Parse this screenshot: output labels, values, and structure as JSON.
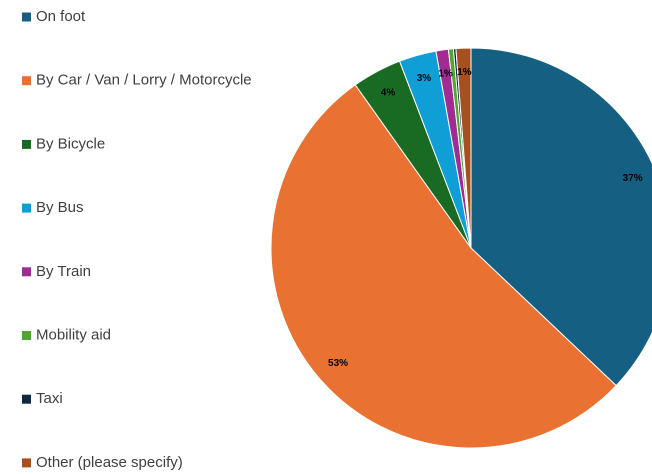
{
  "chart_data": {
    "type": "pie",
    "categories": [
      "On foot",
      "By Car / Van / Lorry / Motorcycle",
      "By Bicycle",
      "By Bus",
      "By Train",
      "Mobility aid",
      "Taxi",
      "Other (please specify)"
    ],
    "values": [
      37,
      53,
      4,
      3,
      1,
      0.4,
      0.2,
      1.2
    ],
    "value_labels": [
      "37%",
      "53%",
      "4%",
      "3%",
      "1%",
      null,
      null,
      "1%"
    ],
    "colors": [
      "#156082",
      "#e97132",
      "#196b24",
      "#0f9ed5",
      "#a02b93",
      "#4ea72e",
      "#0e2841",
      "#a5501e"
    ],
    "legend": "left"
  }
}
